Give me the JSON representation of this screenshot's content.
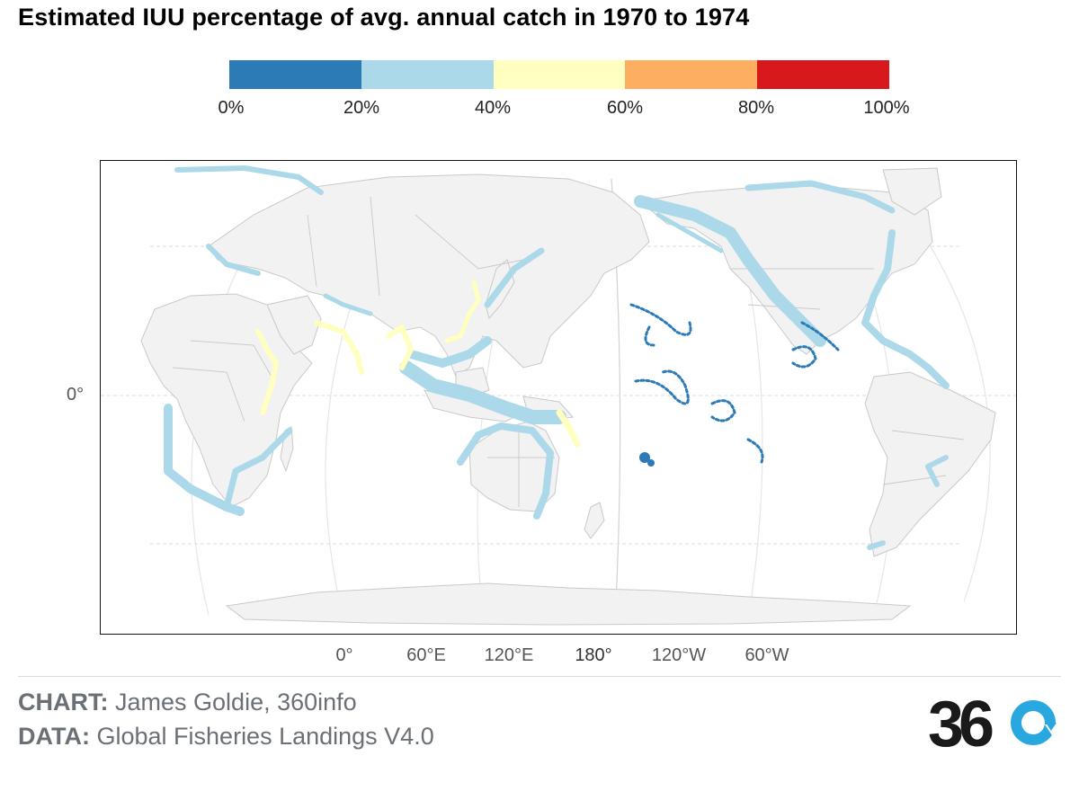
{
  "title": "Estimated IUU percentage of avg. annual catch in 1970 to 1974",
  "legend": {
    "colors": [
      "#2c7bb6",
      "#abd9e9",
      "#ffffbf",
      "#fdae61",
      "#d7191c"
    ],
    "ticks": [
      "0%",
      "20%",
      "40%",
      "60%",
      "80%",
      "100%"
    ]
  },
  "axes": {
    "y_ticks": [
      "0°"
    ],
    "x_ticks": [
      "0°",
      "60°E",
      "120°E",
      "180°",
      "120°W",
      "60°W"
    ]
  },
  "colors": {
    "land": "#f2f2f2",
    "borders": "#c8c8c8",
    "graticule": "#e4e4e4"
  },
  "credits": {
    "chart_label": "CHART:",
    "chart_value": "James Goldie, 360info",
    "data_label": "DATA:",
    "data_value": "Global Fisheries Landings V4.0"
  },
  "logo": {
    "text": "36",
    "icon": "refresh-arrow-icon"
  }
}
